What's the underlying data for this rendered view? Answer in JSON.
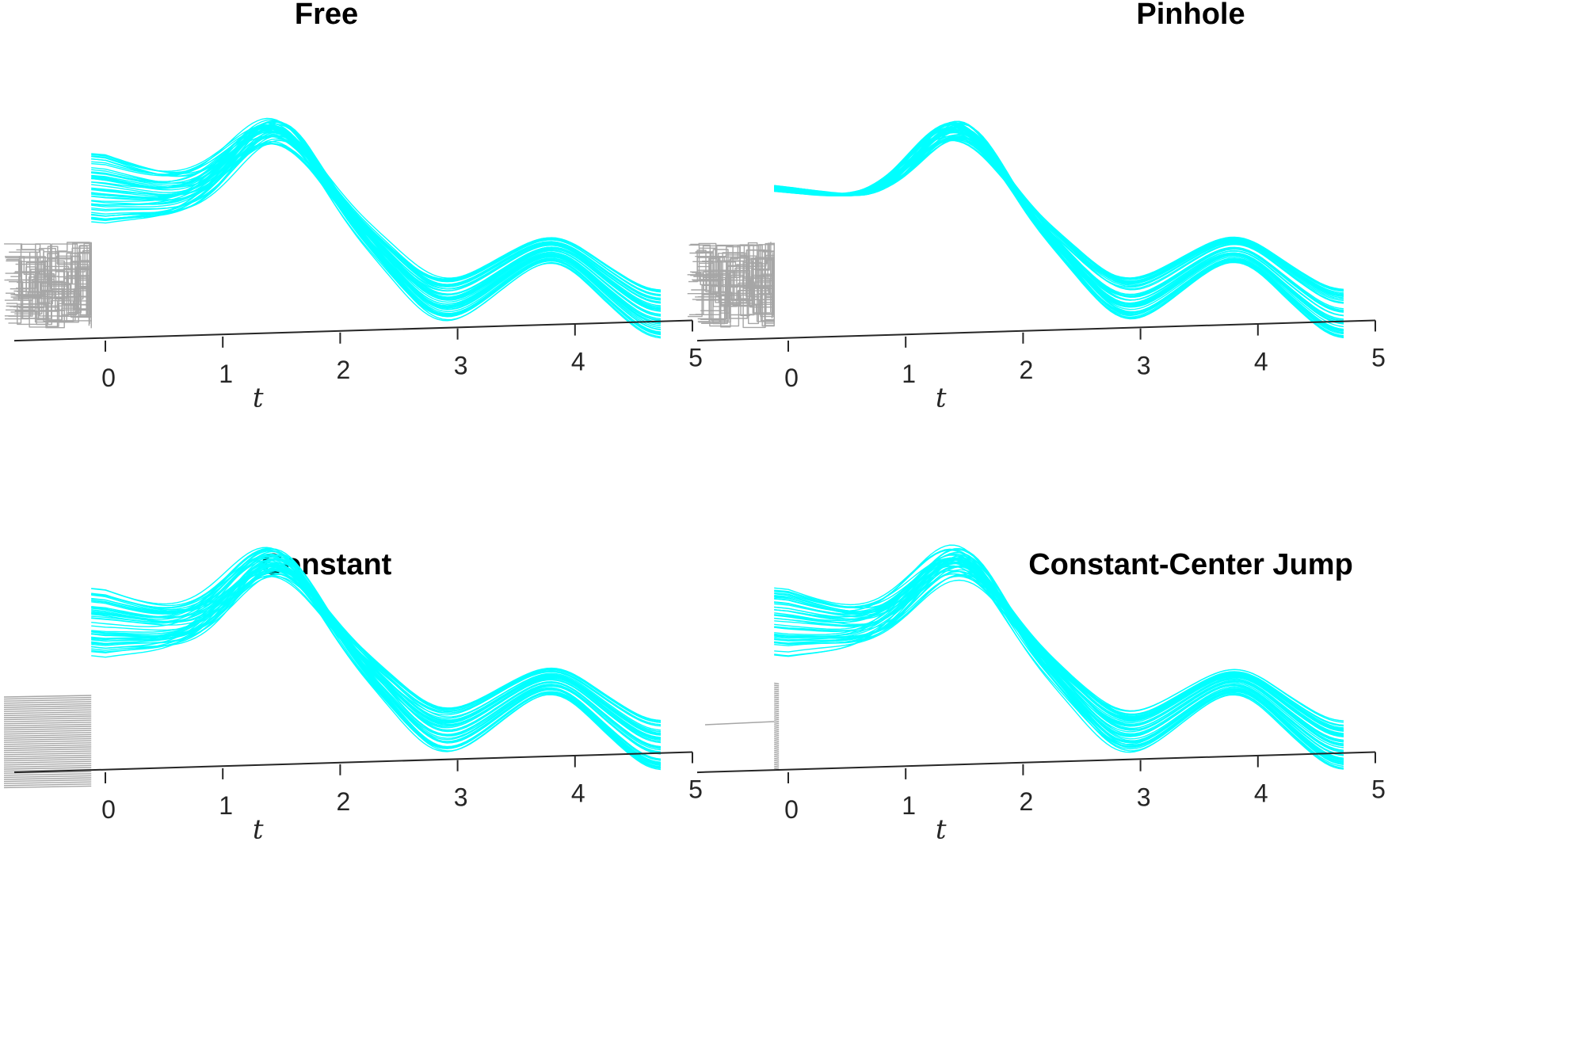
{
  "colors": {
    "trajectory": "#00FFFF",
    "history": "#A6A6A6",
    "axis": "#262626",
    "title": "#000000"
  },
  "chart_data": [
    {
      "type": "line",
      "title": "Free",
      "xlabel": "t",
      "xlim": [
        -0.8,
        5
      ],
      "xticks": [
        "0",
        "1",
        "2",
        "3",
        "4",
        "5"
      ],
      "history": "rectangular zig-zag paths on t < 0",
      "n_trajectories": 50,
      "spread_at_0": 1.0,
      "y_grid": false
    },
    {
      "type": "line",
      "title": "Pinhole",
      "xlabel": "t",
      "xlim": [
        -0.8,
        5
      ],
      "xticks": [
        "0",
        "1",
        "2",
        "3",
        "4",
        "5"
      ],
      "history": "rectangular zig-zag paths on t < 0, all meeting at one point at t = 0",
      "n_trajectories": 50,
      "spread_at_0": 0.0,
      "y_grid": false
    },
    {
      "type": "line",
      "title": "Constant",
      "xlabel": "t",
      "xlim": [
        -0.8,
        5
      ],
      "xticks": [
        "0",
        "1",
        "2",
        "3",
        "4",
        "5"
      ],
      "history": "constant horizontal segments on t < 0",
      "n_trajectories": 50,
      "spread_at_0": 1.0,
      "y_grid": false
    },
    {
      "type": "line",
      "title": "Constant-Center Jump",
      "xlabel": "t",
      "xlim": [
        -0.8,
        5
      ],
      "xticks": [
        "0",
        "1",
        "2",
        "3",
        "4",
        "5"
      ],
      "history": "single constant center line on t < 0, jumping to spread states at t = 0",
      "n_trajectories": 50,
      "spread_at_0": 1.0,
      "y_grid": false
    }
  ]
}
